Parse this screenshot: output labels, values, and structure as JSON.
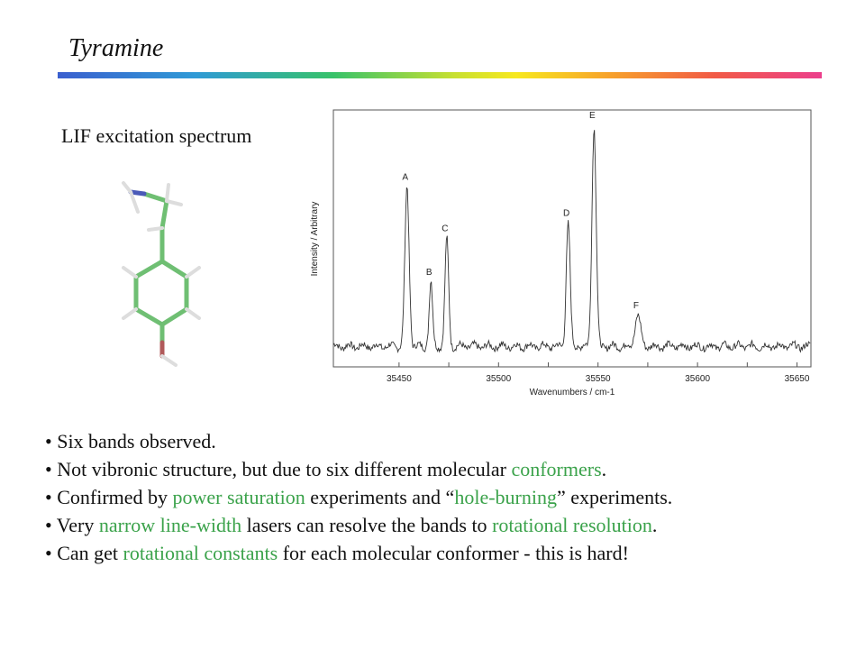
{
  "slide": {
    "title": "Tyramine",
    "subtitle": "LIF excitation spectrum"
  },
  "bullets": [
    [
      {
        "text": "• Six bands observed."
      }
    ],
    [
      {
        "text": "• Not vibronic structure, but due to six different molecular "
      },
      {
        "text": "conformers",
        "hl": true
      },
      {
        "text": "."
      }
    ],
    [
      {
        "text": "• Confirmed by "
      },
      {
        "text": "power saturation",
        "hl": true
      },
      {
        "text": " experiments and “"
      },
      {
        "text": "hole-burning",
        "hl": true
      },
      {
        "text": "” experiments."
      }
    ],
    [
      {
        "text": "• Very "
      },
      {
        "text": "narrow line-width",
        "hl": true
      },
      {
        "text": " lasers can resolve the bands to "
      },
      {
        "text": "rotational resolution",
        "hl": true
      },
      {
        "text": "."
      }
    ],
    [
      {
        "text": "• Can get "
      },
      {
        "text": "rotational constants",
        "hl": true
      },
      {
        "text": " for each molecular conformer - this is hard!"
      }
    ]
  ],
  "colors": {
    "highlight": "#3aa24a",
    "trace": "#333333",
    "molecule_bond": "#6fbf73",
    "nitrogen": "#4a5ab8",
    "oxygen": "#b05a5a"
  },
  "chart_data": {
    "type": "line",
    "title": "",
    "xlabel": "Wavenumbers / cm-1",
    "ylabel": "Intensity / Arbitrary",
    "xlim": [
      35417,
      35657
    ],
    "ylim": [
      0,
      1
    ],
    "xticks": [
      35450,
      35475,
      35500,
      35525,
      35550,
      35575,
      35600,
      35625,
      35650
    ],
    "xtick_labels": [
      "35450",
      "",
      "35500",
      "",
      "35550",
      "",
      "35600",
      "",
      "35650"
    ],
    "grid": false,
    "baseline": 0.08,
    "peaks": [
      {
        "label": "A",
        "x": 35454,
        "height": 0.62,
        "width": 1.5
      },
      {
        "label": "B",
        "x": 35466,
        "height": 0.25,
        "width": 1.2
      },
      {
        "label": "C",
        "x": 35474,
        "height": 0.42,
        "width": 1.3
      },
      {
        "label": "D",
        "x": 35535,
        "height": 0.48,
        "width": 1.4
      },
      {
        "label": "E",
        "x": 35548,
        "height": 0.86,
        "width": 1.5
      },
      {
        "label": "F",
        "x": 35570,
        "height": 0.12,
        "width": 2.0
      }
    ]
  }
}
